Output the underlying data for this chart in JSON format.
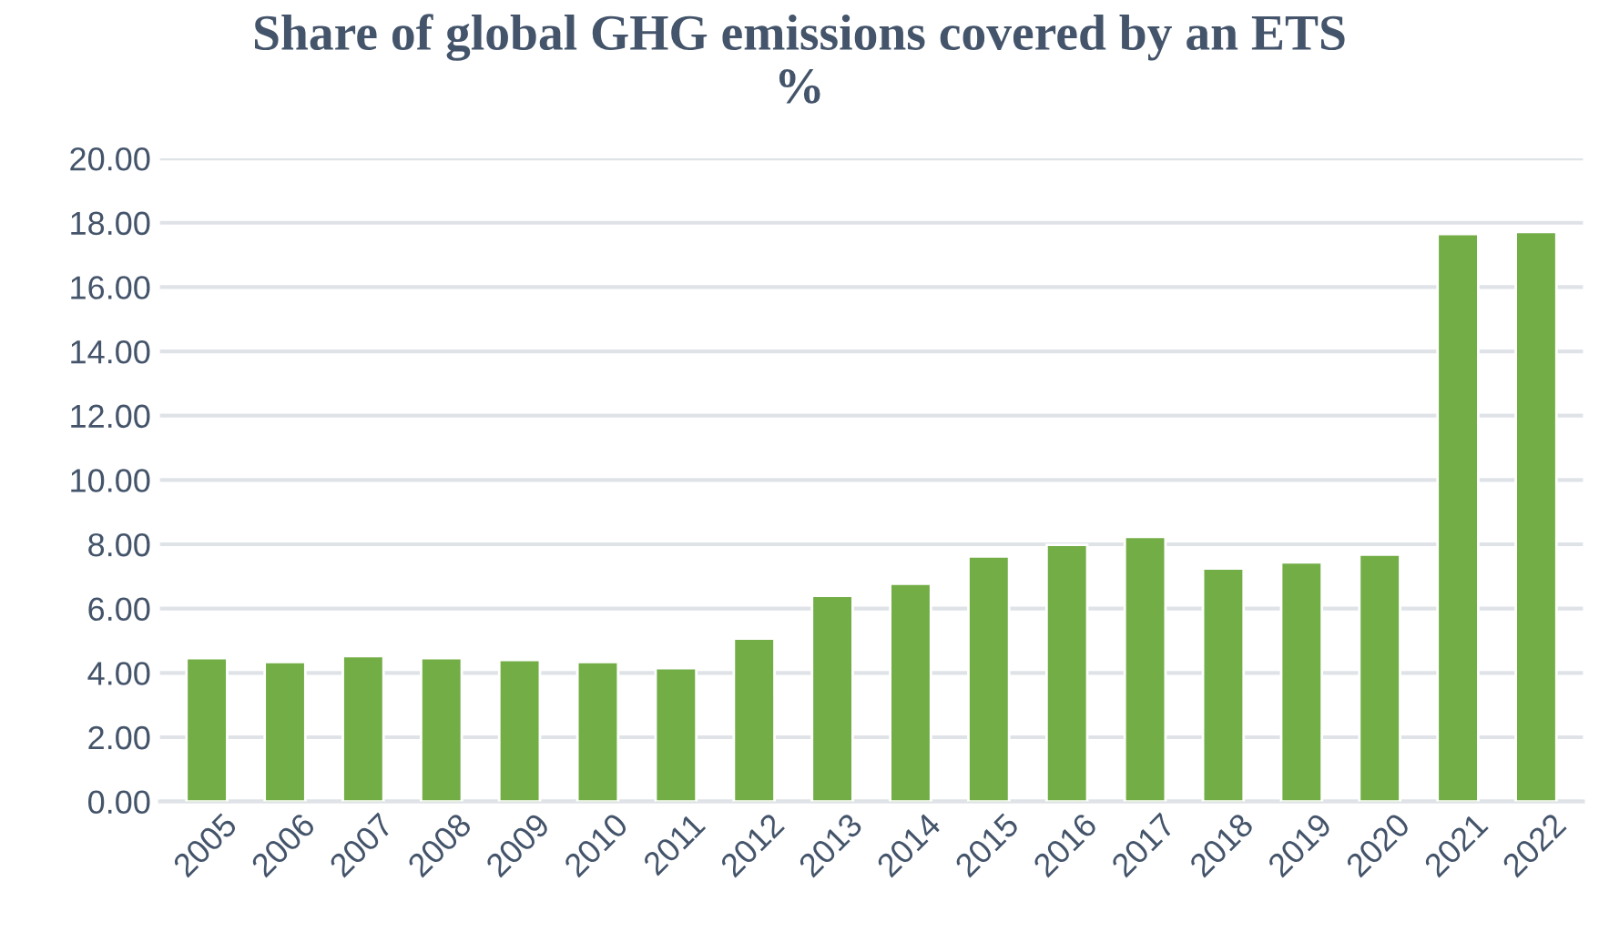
{
  "chart_data": {
    "type": "bar",
    "title": "Share of global GHG emissions covered by an ETS\n%",
    "categories": [
      "2005",
      "2006",
      "2007",
      "2008",
      "2009",
      "2010",
      "2011",
      "2012",
      "2013",
      "2014",
      "2015",
      "2016",
      "2017",
      "2018",
      "2019",
      "2020",
      "2021",
      "2022"
    ],
    "values": [
      4.46,
      4.34,
      4.52,
      4.46,
      4.4,
      4.34,
      4.15,
      5.07,
      6.4,
      6.77,
      7.62,
      7.98,
      8.23,
      7.25,
      7.44,
      7.68,
      17.65,
      17.71
    ],
    "color": "#72ad46",
    "ylim": [
      0,
      20
    ],
    "yticks": [
      {
        "value": 0,
        "label": "0.00"
      },
      {
        "value": 2,
        "label": "2.00"
      },
      {
        "value": 4,
        "label": "4.00"
      },
      {
        "value": 6,
        "label": "6.00"
      },
      {
        "value": 8,
        "label": "8.00"
      },
      {
        "value": 10,
        "label": "10.00"
      },
      {
        "value": 12,
        "label": "12.00"
      },
      {
        "value": 14,
        "label": "14.00"
      },
      {
        "value": 16,
        "label": "16.00"
      },
      {
        "value": 18,
        "label": "18.00"
      },
      {
        "value": 20,
        "label": "20.00"
      }
    ],
    "grid": "y"
  }
}
